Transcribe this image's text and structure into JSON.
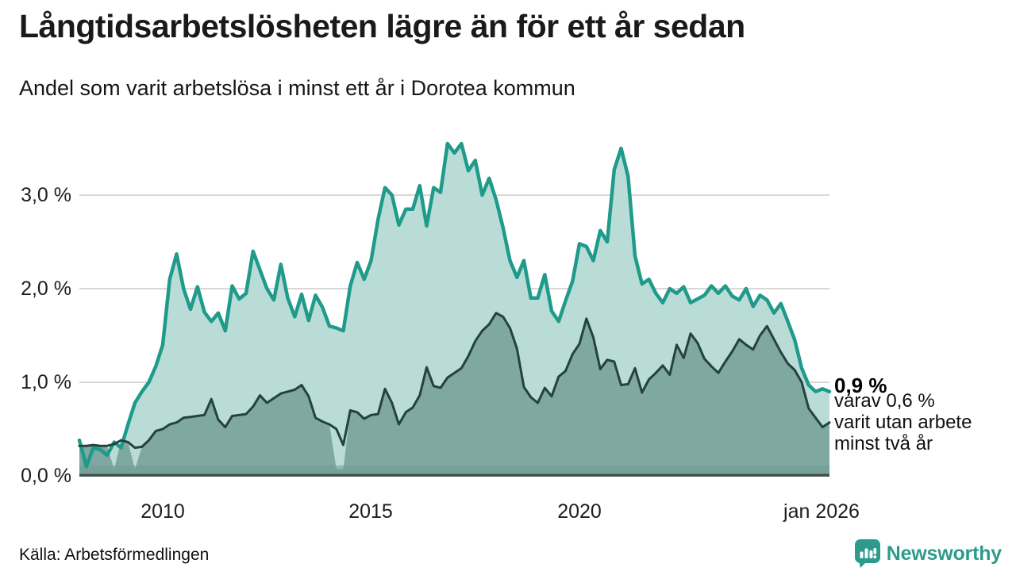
{
  "header": {
    "title": "Långtidsarbetslösheten lägre än för ett år sedan",
    "subtitle": "Andel som varit arbetslösa i minst ett år i Dorotea kommun"
  },
  "annotation": {
    "value_label": "0,9 %",
    "line1": "varav 0,6 %",
    "line2": "varit utan arbete",
    "line3": "minst två år"
  },
  "footer": {
    "source": "Källa: Arbetsförmedlingen",
    "brand": "Newsworthy"
  },
  "chart_data": {
    "type": "area",
    "title": "Långtidsarbetslösheten lägre än för ett år sedan",
    "subtitle": "Andel som varit arbetslösa i minst ett år i Dorotea kommun",
    "unit": "%",
    "x_start_year": 2008.0,
    "x_end_year": 2026.0,
    "x_step_months": 2,
    "ylim": [
      0,
      3.7
    ],
    "grid": true,
    "y_ticks": [
      3.0,
      2.0,
      1.0,
      0.0
    ],
    "y_tick_labels": [
      "3,0 %",
      "2,0 %",
      "1,0 %",
      "0,0 %"
    ],
    "x_tick_years": [
      2010,
      2015,
      2020,
      2026.04
    ],
    "x_tick_labels": [
      "2010",
      "2015",
      "2020",
      "jan 2026"
    ],
    "last_values": {
      "minst_ett_ar": 0.9,
      "minst_tva_ar": 0.6
    },
    "colors": {
      "teal_stroke": "#1f9a8b",
      "teal_fill": "#b9ddd6",
      "dark_stroke": "#24423e",
      "dark_fill": "#7fa8a0",
      "bottom_band": "#6e9a91",
      "baseline": "#414e4b",
      "gridline": "#d8d8d8",
      "brand_teal": "#2d9b8c"
    },
    "series": [
      {
        "name": "Andel arbetslösa minst ett år",
        "stroke": "#1f9a8b",
        "fill": "#b9ddd6",
        "stroke_width": 4.5,
        "values": [
          0.38,
          0.1,
          0.3,
          0.28,
          0.22,
          0.36,
          0.3,
          0.55,
          0.78,
          0.9,
          1.0,
          1.17,
          1.4,
          2.1,
          2.37,
          2.0,
          1.78,
          2.02,
          1.75,
          1.65,
          1.74,
          1.55,
          2.03,
          1.89,
          1.95,
          2.4,
          2.2,
          2.0,
          1.88,
          2.26,
          1.9,
          1.7,
          1.94,
          1.66,
          1.93,
          1.8,
          1.6,
          1.58,
          1.55,
          2.03,
          2.28,
          2.1,
          2.3,
          2.74,
          3.08,
          3.0,
          2.68,
          2.85,
          2.85,
          3.1,
          2.67,
          3.08,
          3.03,
          3.55,
          3.45,
          3.55,
          3.26,
          3.37,
          3.0,
          3.18,
          2.95,
          2.65,
          2.3,
          2.12,
          2.3,
          1.9,
          1.9,
          2.15,
          1.76,
          1.65,
          1.87,
          2.08,
          2.48,
          2.45,
          2.3,
          2.62,
          2.5,
          3.27,
          3.5,
          3.2,
          2.35,
          2.05,
          2.1,
          1.95,
          1.85,
          2.0,
          1.95,
          2.02,
          1.85,
          1.89,
          1.93,
          2.03,
          1.95,
          2.03,
          1.92,
          1.88,
          2.0,
          1.81,
          1.93,
          1.88,
          1.74,
          1.84,
          1.65,
          1.45,
          1.15,
          0.97,
          0.9,
          0.93,
          0.9
        ]
      },
      {
        "name": "Andel arbetslösa minst två år",
        "stroke": "#24423e",
        "fill": "#7fa8a0",
        "stroke_width": 3,
        "fill_dips": {
          "5": 0.07,
          "8": 0.07,
          "37": 0.07,
          "38": 0.07
        },
        "values": [
          0.32,
          0.32,
          0.33,
          0.32,
          0.32,
          0.34,
          0.38,
          0.36,
          0.3,
          0.31,
          0.38,
          0.48,
          0.5,
          0.55,
          0.57,
          0.62,
          0.63,
          0.64,
          0.65,
          0.82,
          0.6,
          0.52,
          0.64,
          0.65,
          0.66,
          0.74,
          0.86,
          0.78,
          0.83,
          0.88,
          0.9,
          0.92,
          0.97,
          0.85,
          0.62,
          0.58,
          0.55,
          0.5,
          0.33,
          0.7,
          0.68,
          0.61,
          0.65,
          0.66,
          0.93,
          0.78,
          0.55,
          0.68,
          0.73,
          0.86,
          1.16,
          0.96,
          0.94,
          1.05,
          1.1,
          1.15,
          1.28,
          1.44,
          1.55,
          1.62,
          1.74,
          1.7,
          1.58,
          1.36,
          0.95,
          0.84,
          0.78,
          0.94,
          0.85,
          1.06,
          1.12,
          1.3,
          1.41,
          1.68,
          1.48,
          1.14,
          1.24,
          1.22,
          0.97,
          0.98,
          1.15,
          0.89,
          1.03,
          1.1,
          1.18,
          1.08,
          1.4,
          1.26,
          1.52,
          1.42,
          1.25,
          1.17,
          1.1,
          1.22,
          1.33,
          1.46,
          1.4,
          1.35,
          1.5,
          1.6,
          1.46,
          1.32,
          1.2,
          1.13,
          1.0,
          0.72,
          0.62,
          0.52,
          0.57
        ]
      }
    ]
  }
}
